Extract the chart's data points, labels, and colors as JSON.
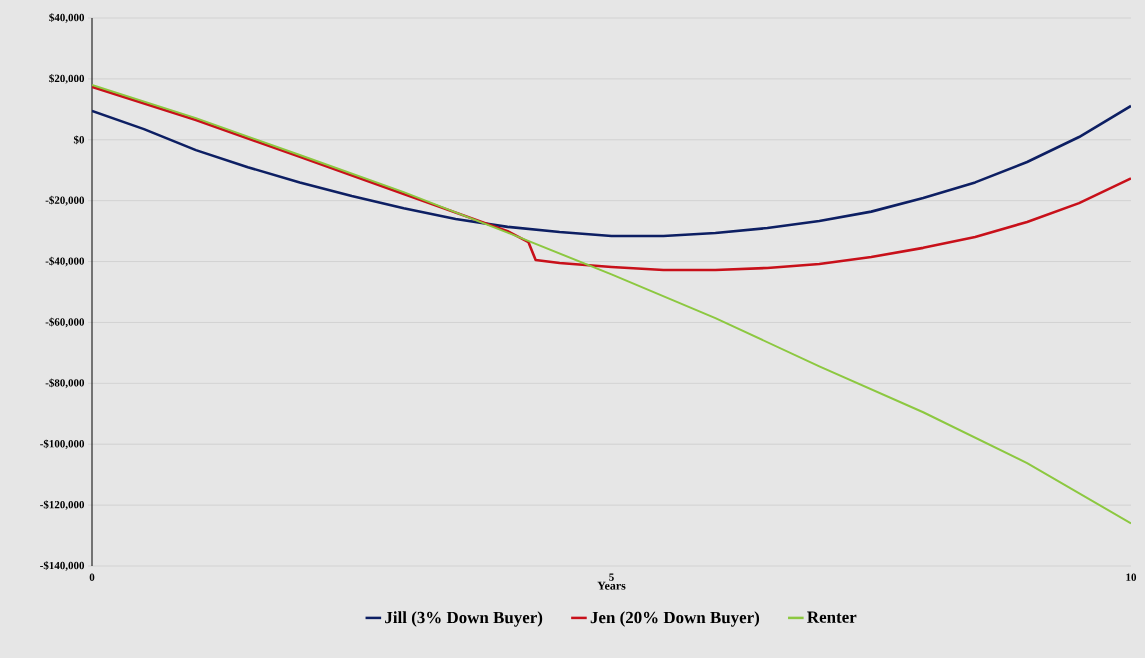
{
  "chart_data": {
    "type": "line",
    "xlabel": "Years",
    "xlim": [
      0,
      10
    ],
    "xticks": [
      0,
      5,
      10
    ],
    "ylim": [
      -140000,
      40000
    ],
    "yticks": [
      {
        "value": -140000,
        "label": "-$140,000"
      },
      {
        "value": -120000,
        "label": "-$120,000"
      },
      {
        "value": -100000,
        "label": "-$100,000"
      },
      {
        "value": -80000,
        "label": "-$80,000"
      },
      {
        "value": -60000,
        "label": "-$60,000"
      },
      {
        "value": -40000,
        "label": "-$40,000"
      },
      {
        "value": -20000,
        "label": "-$20,000"
      },
      {
        "value": 0,
        "label": "$0"
      },
      {
        "value": 20000,
        "label": "$20,000"
      },
      {
        "value": 40000,
        "label": "$40,000"
      }
    ],
    "grid": "y",
    "legend": "bottom",
    "marker": "none",
    "line_style": "solid",
    "series": [
      {
        "name": "Jill (3% Down Buyer)",
        "color": "#0d1f63",
        "x": [
          0,
          0.5,
          1,
          1.5,
          2,
          2.5,
          3,
          3.5,
          4,
          4.5,
          5,
          5.5,
          6,
          6.5,
          7,
          7.5,
          8,
          8.5,
          9,
          9.5,
          10
        ],
        "values": [
          9500,
          3500,
          -3400,
          -9000,
          -14000,
          -18500,
          -22500,
          -26000,
          -28600,
          -30300,
          -31600,
          -31600,
          -30600,
          -29000,
          -26700,
          -23600,
          -19100,
          -14000,
          -7300,
          900,
          11100
        ]
      },
      {
        "name": "Jen (20% Down Buyer)",
        "color": "#c8101a",
        "x": [
          0,
          1,
          2,
          3,
          4,
          4.2,
          4.27,
          4.5,
          5,
          5.5,
          6,
          6.5,
          7,
          7.5,
          8,
          8.5,
          9,
          9.5,
          10
        ],
        "values": [
          17400,
          6500,
          -5600,
          -17800,
          -30000,
          -33600,
          -39500,
          -40500,
          -41800,
          -42800,
          -42800,
          -42100,
          -40800,
          -38500,
          -35500,
          -31900,
          -27000,
          -20800,
          -12700
        ]
      },
      {
        "name": "Renter",
        "color": "#8cc840",
        "x": [
          0,
          1,
          2,
          3,
          4,
          5,
          6,
          7,
          8,
          9,
          10
        ],
        "values": [
          18000,
          7100,
          -5000,
          -17200,
          -30500,
          -44200,
          -58600,
          -74400,
          -89500,
          -106200,
          -126000
        ]
      }
    ]
  }
}
